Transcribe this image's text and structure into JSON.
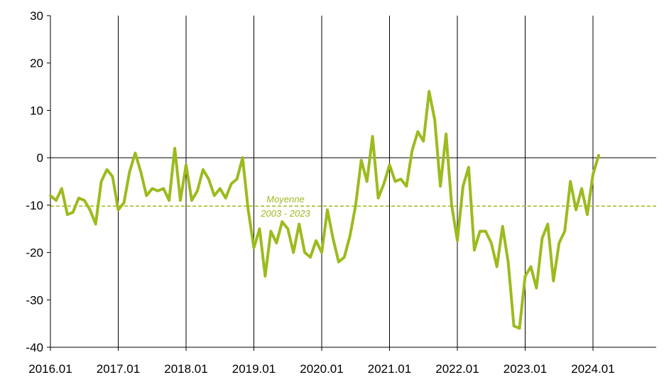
{
  "chart_data": {
    "type": "line",
    "title": "",
    "xlabel": "",
    "ylabel": "",
    "ylim": [
      -40,
      30
    ],
    "yticks": [
      30,
      20,
      10,
      0,
      -10,
      -20,
      -30,
      -40
    ],
    "xticks": [
      "2016.01",
      "2017.01",
      "2018.01",
      "2019.01",
      "2020.01",
      "2021.01",
      "2022.01",
      "2023.01",
      "2024.01"
    ],
    "grid": "vertical lines at each year",
    "x_start": "2016.01",
    "x_end": "2024.01",
    "average": {
      "value": -10.2,
      "label_line1": "Moyenne",
      "label_line2": "2003 - 2023"
    },
    "series": [
      {
        "color": "#9bbb1e",
        "values": [
          -8,
          -9,
          -6.5,
          -12,
          -11.5,
          -8.5,
          -9,
          -11,
          -14,
          -5,
          -2.5,
          -4,
          -11,
          -9.5,
          -3,
          1,
          -3,
          -8,
          -6.5,
          -7,
          -6.5,
          -9,
          2,
          -9,
          -1.5,
          -9,
          -7,
          -2.5,
          -4.5,
          -8,
          -6.5,
          -8.5,
          -5.5,
          -4.5,
          0,
          -11,
          -19,
          -15,
          -25,
          -15.5,
          -18,
          -13.5,
          -15,
          -20,
          -14,
          -20,
          -21,
          -17.5,
          -20,
          -11,
          -17,
          -22,
          -21,
          -16.5,
          -10,
          -0.5,
          -5,
          4.5,
          -8.5,
          -5.5,
          -1.5,
          -5,
          -4.5,
          -6,
          1.5,
          5.5,
          3.5,
          14,
          8,
          -6,
          5,
          -10,
          -17.5,
          -6,
          -2,
          -19.5,
          -15.5,
          -15.5,
          -18,
          -23,
          -14.5,
          -22,
          -35.5,
          -36,
          -25,
          -23,
          -27.5,
          -17,
          -14,
          -26,
          -18,
          -15.5,
          -5,
          -11,
          -6.5,
          -12,
          -3.5,
          0.5
        ]
      }
    ],
    "colors": {
      "line": "#9bbb1e",
      "average_line": "#9bbb1e",
      "axis": "#000000"
    }
  }
}
